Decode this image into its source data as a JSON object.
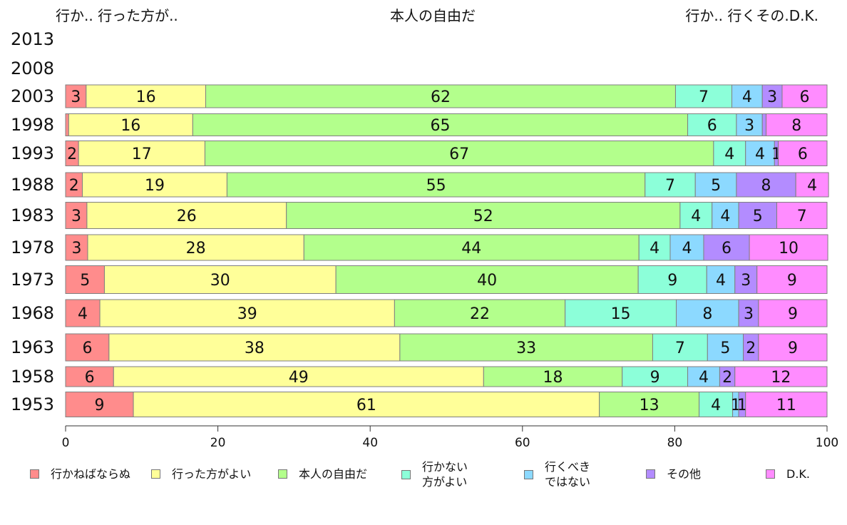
{
  "header": {
    "left": "行か.. 行った方が..",
    "center": "本人の自由だ",
    "right": "行か.. 行くその.D.K."
  },
  "chart_data": {
    "type": "bar",
    "orientation": "horizontal",
    "stacked": true,
    "categories": [
      "2013",
      "2008",
      "2003",
      "1998",
      "1993",
      "1988",
      "1983",
      "1978",
      "1973",
      "1968",
      "1963",
      "1958",
      "1953"
    ],
    "xlim": [
      0,
      100
    ],
    "xticks": [
      0,
      20,
      40,
      60,
      80,
      100
    ],
    "legend_position": "bottom",
    "series": [
      {
        "name": "行かねばならぬ",
        "color": "#ff8c8c",
        "values": [
          null,
          null,
          2.7,
          0.4,
          1.7,
          2.2,
          2.8,
          2.9,
          5.1,
          4.5,
          5.7,
          6.3,
          8.9
        ],
        "labels": [
          "",
          "",
          "3",
          "",
          "2",
          "2",
          "3",
          "3",
          "5",
          "4",
          "6",
          "6",
          "9"
        ]
      },
      {
        "name": "行った方がよい",
        "color": "#ffff99",
        "values": [
          null,
          null,
          15.7,
          16.3,
          16.6,
          19.0,
          26.2,
          28.4,
          30.4,
          38.7,
          38.2,
          48.6,
          61.2
        ],
        "labels": [
          "",
          "",
          "16",
          "16",
          "17",
          "19",
          "26",
          "28",
          "30",
          "39",
          "38",
          "49",
          "61"
        ]
      },
      {
        "name": "本人の自由だ",
        "color": "#b3ff8c",
        "values": [
          null,
          null,
          61.7,
          65.0,
          66.8,
          54.9,
          51.7,
          44.0,
          39.7,
          22.4,
          33.2,
          18.2,
          13.1
        ],
        "labels": [
          "",
          "",
          "62",
          "65",
          "67",
          "55",
          "52",
          "44",
          "40",
          "22",
          "33",
          "18",
          "13"
        ]
      },
      {
        "name": "行かない方がよい",
        "label_lines": [
          "行かない",
          "方がよい"
        ],
        "color": "#8cffd9",
        "values": [
          null,
          null,
          7.4,
          6.4,
          4.2,
          6.6,
          4.2,
          4.1,
          9.0,
          14.6,
          7.2,
          8.6,
          4.4
        ],
        "labels": [
          "",
          "",
          "7",
          "6",
          "4",
          "7",
          "4",
          "4",
          "9",
          "15",
          "7",
          "9",
          "4"
        ]
      },
      {
        "name": "行くべきではない",
        "label_lines": [
          "行くべき",
          "ではない"
        ],
        "color": "#8cd9ff",
        "values": [
          null,
          null,
          4.0,
          3.4,
          3.8,
          5.4,
          3.5,
          4.4,
          3.7,
          8.2,
          4.7,
          4.2,
          0.8
        ],
        "labels": [
          "",
          "",
          "4",
          "3",
          "4",
          "5",
          "4",
          "4",
          "4",
          "8",
          "5",
          "4",
          "1"
        ]
      },
      {
        "name": "その他",
        "color": "#b38cff",
        "values": [
          null,
          null,
          2.6,
          0.5,
          0.5,
          7.8,
          5.0,
          6.0,
          2.9,
          2.6,
          2.0,
          2.0,
          0.9
        ],
        "labels": [
          "",
          "",
          "3",
          "",
          "1",
          "8",
          "5",
          "6",
          "3",
          "3",
          "2",
          "2",
          "1"
        ]
      },
      {
        "name": "D.K.",
        "color": "#ff8cff",
        "values": [
          null,
          null,
          5.9,
          8.0,
          6.4,
          4.3,
          6.6,
          10.3,
          9.2,
          9.0,
          9.0,
          12.1,
          10.7
        ],
        "labels": [
          "",
          "",
          "6",
          "8",
          "6",
          "4",
          "7",
          "10",
          "9",
          "9",
          "9",
          "12",
          "11"
        ]
      }
    ]
  }
}
